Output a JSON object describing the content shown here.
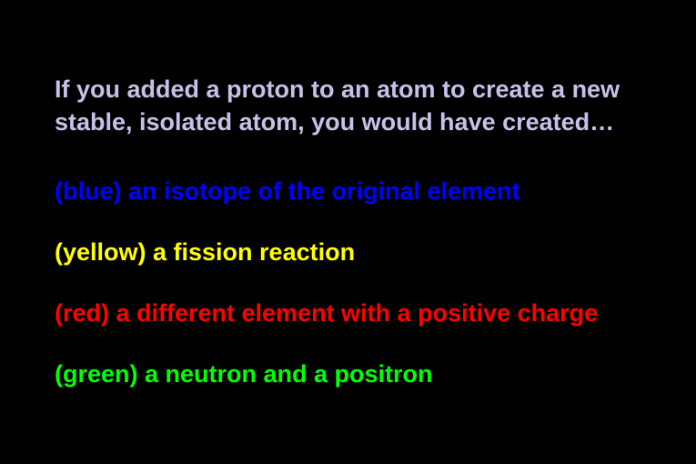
{
  "question": {
    "text": "If you added a proton to an atom to create a new stable, isolated atom, you would have created…",
    "color": "#c5c1e8"
  },
  "answers": [
    {
      "label": "(blue) an isotope of the original element",
      "color": "#0000ff"
    },
    {
      "label": "(yellow) a fission reaction",
      "color": "#ffff00"
    },
    {
      "label": "(red) a different element with a positive charge",
      "color": "#ff0000"
    },
    {
      "label": "(green) a neutron and a positron",
      "color": "#00ff00"
    }
  ],
  "background_color": "#000000"
}
